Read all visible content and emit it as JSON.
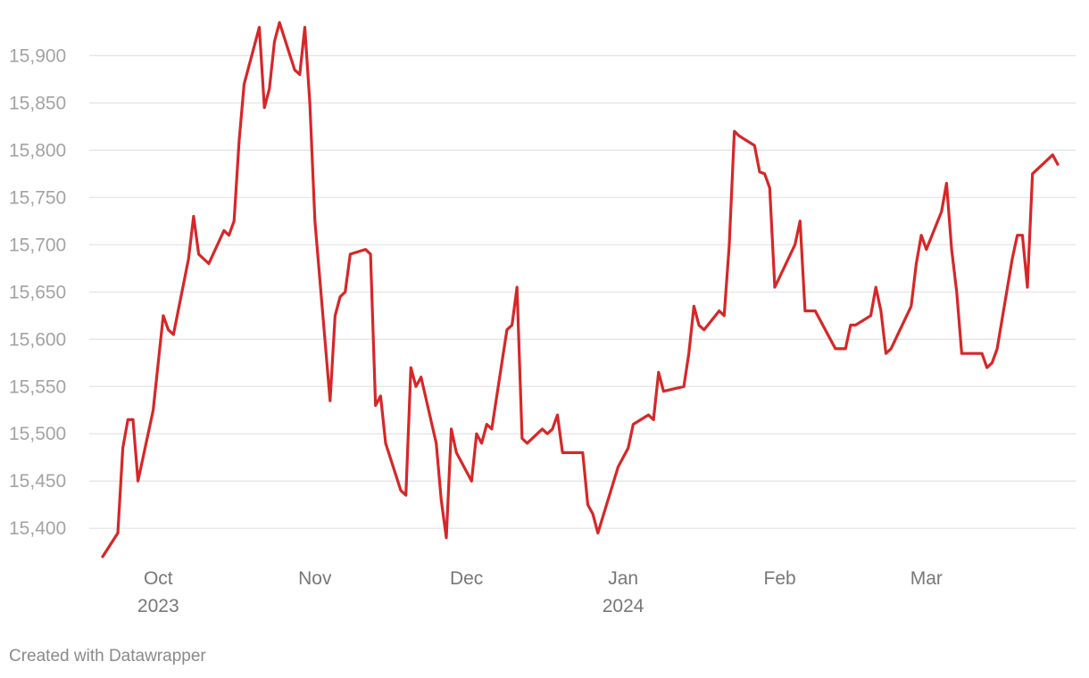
{
  "footer": "Created with Datawrapper",
  "colors": {
    "line": "#d62728",
    "grid": "#e3e3e3",
    "ytick": "#a3a3a3",
    "xtick": "#777777"
  },
  "chart_data": {
    "type": "line",
    "title": "",
    "xlabel": "",
    "ylabel": "",
    "grid": true,
    "ylim": [
      15370,
      15940
    ],
    "xlim": [
      "2023-09-20",
      "2024-03-27"
    ],
    "y_ticks": [
      {
        "value": 15400,
        "label": "15,400"
      },
      {
        "value": 15450,
        "label": "15,450"
      },
      {
        "value": 15500,
        "label": "15,500"
      },
      {
        "value": 15550,
        "label": "15,550"
      },
      {
        "value": 15600,
        "label": "15,600"
      },
      {
        "value": 15650,
        "label": "15,650"
      },
      {
        "value": 15700,
        "label": "15,700"
      },
      {
        "value": 15750,
        "label": "15,750"
      },
      {
        "value": 15800,
        "label": "15,800"
      },
      {
        "value": 15850,
        "label": "15,850"
      },
      {
        "value": 15900,
        "label": "15,900"
      }
    ],
    "x_ticks": [
      {
        "date": "2023-10-01",
        "label": "Oct",
        "year": "2023"
      },
      {
        "date": "2023-11-01",
        "label": "Nov",
        "year": ""
      },
      {
        "date": "2023-12-01",
        "label": "Dec",
        "year": ""
      },
      {
        "date": "2024-01-01",
        "label": "Jan",
        "year": "2024"
      },
      {
        "date": "2024-02-01",
        "label": "Feb",
        "year": ""
      },
      {
        "date": "2024-03-01",
        "label": "Mar",
        "year": ""
      }
    ],
    "series": [
      {
        "color": "#d62728",
        "points": [
          [
            "2023-09-20",
            15370
          ],
          [
            "2023-09-23",
            15395
          ],
          [
            "2023-09-24",
            15485
          ],
          [
            "2023-09-25",
            15515
          ],
          [
            "2023-09-26",
            15515
          ],
          [
            "2023-09-27",
            15450
          ],
          [
            "2023-09-30",
            15525
          ],
          [
            "2023-10-02",
            15625
          ],
          [
            "2023-10-03",
            15610
          ],
          [
            "2023-10-04",
            15605
          ],
          [
            "2023-10-07",
            15685
          ],
          [
            "2023-10-08",
            15730
          ],
          [
            "2023-10-09",
            15690
          ],
          [
            "2023-10-11",
            15680
          ],
          [
            "2023-10-14",
            15715
          ],
          [
            "2023-10-15",
            15710
          ],
          [
            "2023-10-16",
            15725
          ],
          [
            "2023-10-17",
            15810
          ],
          [
            "2023-10-18",
            15870
          ],
          [
            "2023-10-21",
            15930
          ],
          [
            "2023-10-22",
            15845
          ],
          [
            "2023-10-23",
            15865
          ],
          [
            "2023-10-24",
            15915
          ],
          [
            "2023-10-25",
            15935
          ],
          [
            "2023-10-28",
            15885
          ],
          [
            "2023-10-29",
            15880
          ],
          [
            "2023-10-30",
            15930
          ],
          [
            "2023-10-31",
            15850
          ],
          [
            "2023-11-01",
            15725
          ],
          [
            "2023-11-04",
            15535
          ],
          [
            "2023-11-05",
            15625
          ],
          [
            "2023-11-06",
            15645
          ],
          [
            "2023-11-07",
            15650
          ],
          [
            "2023-11-08",
            15690
          ],
          [
            "2023-11-11",
            15695
          ],
          [
            "2023-11-12",
            15690
          ],
          [
            "2023-11-13",
            15530
          ],
          [
            "2023-11-14",
            15540
          ],
          [
            "2023-11-15",
            15490
          ],
          [
            "2023-11-18",
            15440
          ],
          [
            "2023-11-19",
            15435
          ],
          [
            "2023-11-20",
            15570
          ],
          [
            "2023-11-21",
            15550
          ],
          [
            "2023-11-22",
            15560
          ],
          [
            "2023-11-25",
            15490
          ],
          [
            "2023-11-26",
            15430
          ],
          [
            "2023-11-27",
            15390
          ],
          [
            "2023-11-28",
            15505
          ],
          [
            "2023-11-29",
            15480
          ],
          [
            "2023-12-02",
            15450
          ],
          [
            "2023-12-03",
            15500
          ],
          [
            "2023-12-04",
            15490
          ],
          [
            "2023-12-05",
            15510
          ],
          [
            "2023-12-06",
            15505
          ],
          [
            "2023-12-09",
            15610
          ],
          [
            "2023-12-10",
            15615
          ],
          [
            "2023-12-11",
            15655
          ],
          [
            "2023-12-12",
            15495
          ],
          [
            "2023-12-13",
            15490
          ],
          [
            "2023-12-16",
            15505
          ],
          [
            "2023-12-17",
            15500
          ],
          [
            "2023-12-18",
            15505
          ],
          [
            "2023-12-19",
            15520
          ],
          [
            "2023-12-20",
            15480
          ],
          [
            "2023-12-24",
            15480
          ],
          [
            "2023-12-25",
            15425
          ],
          [
            "2023-12-26",
            15415
          ],
          [
            "2023-12-27",
            15395
          ],
          [
            "2023-12-31",
            15465
          ],
          [
            "2024-01-02",
            15485
          ],
          [
            "2024-01-03",
            15510
          ],
          [
            "2024-01-06",
            15520
          ],
          [
            "2024-01-07",
            15515
          ],
          [
            "2024-01-08",
            15565
          ],
          [
            "2024-01-09",
            15545
          ],
          [
            "2024-01-13",
            15550
          ],
          [
            "2024-01-14",
            15585
          ],
          [
            "2024-01-15",
            15635
          ],
          [
            "2024-01-16",
            15615
          ],
          [
            "2024-01-17",
            15610
          ],
          [
            "2024-01-20",
            15630
          ],
          [
            "2024-01-21",
            15625
          ],
          [
            "2024-01-22",
            15700
          ],
          [
            "2024-01-23",
            15820
          ],
          [
            "2024-01-24",
            15815
          ],
          [
            "2024-01-27",
            15805
          ],
          [
            "2024-01-28",
            15777
          ],
          [
            "2024-01-29",
            15775
          ],
          [
            "2024-01-30",
            15760
          ],
          [
            "2024-01-31",
            15655
          ],
          [
            "2024-02-04",
            15700
          ],
          [
            "2024-02-05",
            15725
          ],
          [
            "2024-02-06",
            15630
          ],
          [
            "2024-02-08",
            15630
          ],
          [
            "2024-02-12",
            15590
          ],
          [
            "2024-02-14",
            15590
          ],
          [
            "2024-02-15",
            15615
          ],
          [
            "2024-02-16",
            15615
          ],
          [
            "2024-02-19",
            15625
          ],
          [
            "2024-02-20",
            15655
          ],
          [
            "2024-02-21",
            15630
          ],
          [
            "2024-02-22",
            15585
          ],
          [
            "2024-02-23",
            15590
          ],
          [
            "2024-02-27",
            15635
          ],
          [
            "2024-02-28",
            15680
          ],
          [
            "2024-02-29",
            15710
          ],
          [
            "2024-03-01",
            15695
          ],
          [
            "2024-03-04",
            15735
          ],
          [
            "2024-03-05",
            15765
          ],
          [
            "2024-03-06",
            15695
          ],
          [
            "2024-03-07",
            15650
          ],
          [
            "2024-03-08",
            15585
          ],
          [
            "2024-03-12",
            15585
          ],
          [
            "2024-03-13",
            15570
          ],
          [
            "2024-03-14",
            15575
          ],
          [
            "2024-03-15",
            15590
          ],
          [
            "2024-03-18",
            15685
          ],
          [
            "2024-03-19",
            15710
          ],
          [
            "2024-03-20",
            15710
          ],
          [
            "2024-03-21",
            15655
          ],
          [
            "2024-03-22",
            15775
          ],
          [
            "2024-03-26",
            15795
          ],
          [
            "2024-03-27",
            15785
          ]
        ]
      }
    ]
  }
}
